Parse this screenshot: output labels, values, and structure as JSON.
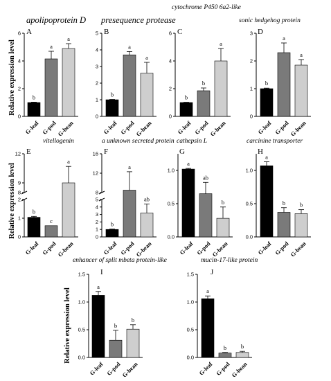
{
  "figure": {
    "ylabel": "Relative expression level",
    "categories": [
      "G-leaf",
      "G-pod",
      "G-bean"
    ],
    "bar_colors": [
      "#000000",
      "#7a7a7a",
      "#cecece"
    ]
  },
  "chart_data": [
    {
      "id": "A",
      "type": "bar",
      "title": "apolipoprotein D",
      "categories": [
        "G-leaf",
        "G-pod",
        "G-bean"
      ],
      "values": [
        1.0,
        4.15,
        4.9
      ],
      "errors": [
        0.03,
        0.55,
        0.35
      ],
      "letters": [
        "b",
        "a",
        "a"
      ],
      "ylim": [
        0,
        6
      ],
      "yticks": [
        0,
        2,
        4,
        6
      ],
      "tick_labels": [
        "0",
        "2",
        "4",
        "6"
      ]
    },
    {
      "id": "B",
      "type": "bar",
      "title": "presequence protease",
      "categories": [
        "G-leaf",
        "G-pod",
        "G-bean"
      ],
      "values": [
        1.0,
        3.7,
        2.6
      ],
      "errors": [
        0.02,
        0.2,
        0.65
      ],
      "letters": [
        "b",
        "a",
        "a"
      ],
      "ylim": [
        0,
        5
      ],
      "yticks": [
        0,
        1,
        2,
        3,
        4,
        5
      ],
      "tick_labels": [
        "0",
        "1",
        "2",
        "3",
        "4",
        "5"
      ]
    },
    {
      "id": "C",
      "type": "bar",
      "title": "cytochrome P450 6a2-like",
      "categories": [
        "G-leaf",
        "G-pod",
        "G-bean"
      ],
      "values": [
        1.0,
        1.85,
        4.0
      ],
      "errors": [
        0.02,
        0.2,
        0.9
      ],
      "letters": [
        "b",
        "b",
        "a"
      ],
      "ylim": [
        0,
        6
      ],
      "yticks": [
        0,
        2,
        4,
        6
      ],
      "tick_labels": [
        "0",
        "2",
        "4",
        "6"
      ]
    },
    {
      "id": "D",
      "type": "bar",
      "title": "sonic hedgehog protein",
      "categories": [
        "G-leaf",
        "G-pod",
        "G-bean"
      ],
      "values": [
        1.0,
        2.3,
        1.85
      ],
      "errors": [
        0.02,
        0.35,
        0.2
      ],
      "letters": [
        "b",
        "a",
        "a"
      ],
      "ylim": [
        0,
        3
      ],
      "yticks": [
        0,
        1,
        2,
        3
      ],
      "tick_labels": [
        "0",
        "1",
        "2",
        "3"
      ]
    },
    {
      "id": "E",
      "type": "bar",
      "title": "vitellogenin",
      "categories": [
        "G-leaf",
        "G-pod",
        "G-bean"
      ],
      "values": [
        1.05,
        0.6,
        9.0
      ],
      "errors": [
        0.05,
        0.0,
        1.7
      ],
      "letters": [
        "b",
        "c",
        "a"
      ],
      "axis_break": {
        "lower": [
          0,
          2
        ],
        "upper": [
          8,
          12
        ]
      },
      "yticks": [
        0,
        1,
        2,
        8,
        9,
        12
      ],
      "tick_labels": [
        "0",
        "1",
        "2",
        "8",
        "9",
        "12"
      ]
    },
    {
      "id": "F",
      "type": "bar",
      "title": "a unknown secreted protein",
      "categories": [
        "G-leaf",
        "G-pod",
        "G-bean"
      ],
      "values": [
        1.0,
        8.5,
        3.2
      ],
      "errors": [
        0.05,
        3.8,
        1.2
      ],
      "letters": [
        "b",
        "a",
        "ab"
      ],
      "axis_break": {
        "lower": [
          0,
          5
        ],
        "upper": [
          8,
          16
        ]
      },
      "yticks": [
        0,
        1,
        2,
        3,
        4,
        5,
        8,
        12,
        16
      ],
      "tick_labels": [
        "0",
        "1",
        "2",
        "3",
        "4",
        "5",
        "8",
        "12",
        "16"
      ]
    },
    {
      "id": "G",
      "type": "bar",
      "title": "cathepsin L",
      "categories": [
        "G-leaf",
        "G-pod",
        "G-bean"
      ],
      "values": [
        1.02,
        0.65,
        0.28
      ],
      "errors": [
        0.01,
        0.17,
        0.17
      ],
      "letters": [
        "a",
        "ab",
        "b"
      ],
      "ylim": [
        0,
        1.25
      ],
      "yticks": [
        0,
        0.5,
        1.0
      ],
      "tick_labels": [
        "0.0",
        "0.5",
        "1.0"
      ]
    },
    {
      "id": "H",
      "type": "bar",
      "title": "carcinine transporter",
      "categories": [
        "G-leaf",
        "G-pod",
        "G-bean"
      ],
      "values": [
        1.07,
        0.37,
        0.35
      ],
      "errors": [
        0.06,
        0.07,
        0.06
      ],
      "letters": [
        "a",
        "b",
        "b"
      ],
      "ylim": [
        0,
        1.25
      ],
      "yticks": [
        0,
        0.5,
        1.0
      ],
      "tick_labels": [
        "0.0",
        "0.5",
        "1.0"
      ]
    },
    {
      "id": "I",
      "type": "bar",
      "title": "enhancer of split mbeta protein-like",
      "categories": [
        "G-leaf",
        "G-pod",
        "G-bean"
      ],
      "values": [
        1.12,
        0.31,
        0.51
      ],
      "errors": [
        0.07,
        0.18,
        0.08
      ],
      "letters": [
        "a",
        "b",
        "b"
      ],
      "ylim": [
        0,
        1.5
      ],
      "yticks": [
        0,
        0.5,
        1.0,
        1.5
      ],
      "tick_labels": [
        "0.0",
        "0.5",
        "1.0",
        "1.5"
      ]
    },
    {
      "id": "J",
      "type": "bar",
      "title": "mucin-17-like protein",
      "categories": [
        "G-leaf",
        "G-pod",
        "G-bean"
      ],
      "values": [
        1.06,
        0.08,
        0.09
      ],
      "errors": [
        0.05,
        0.01,
        0.02
      ],
      "letters": [
        "a",
        "b",
        "b"
      ],
      "ylim": [
        0,
        1.5
      ],
      "yticks": [
        0,
        0.5,
        1.0,
        1.5
      ],
      "tick_labels": [
        "0.0",
        "0.5",
        "1.0",
        "1.5"
      ]
    }
  ]
}
